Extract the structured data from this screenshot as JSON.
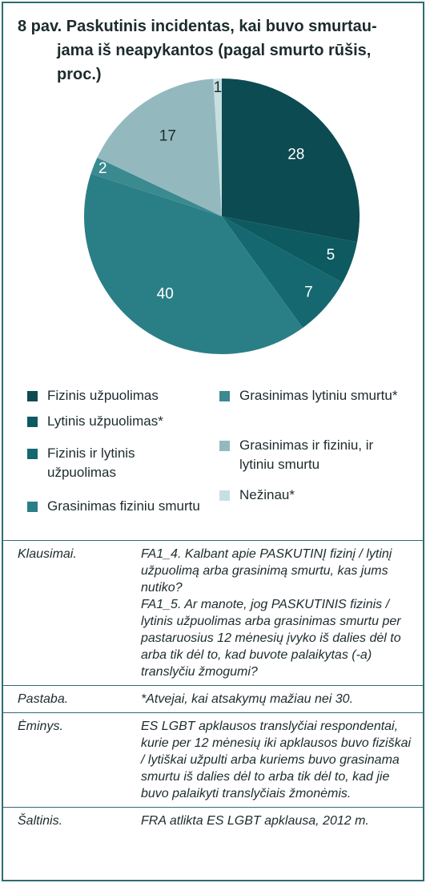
{
  "chart_data": {
    "type": "pie",
    "title": [
      "8 pav. Paskutinis incidentas, kai buvo smurtau-",
      "jama iš neapykantos (pagal smurto rūšis,",
      "proc.)"
    ],
    "categories": [
      "Fizinis užpuolimas",
      "Lytinis užpuolimas*",
      "Fizinis ir lytinis užpuolimas",
      "Grasinimas fiziniu smurtu",
      "Grasinimas lytiniu smurtu*",
      "Grasinimas ir fiziniu, ir lytiniu smurtu",
      "Nežinau*"
    ],
    "values": [
      28,
      5,
      7,
      40,
      2,
      17,
      1
    ],
    "colors": [
      "#0c4b51",
      "#0e5a61",
      "#15686f",
      "#2a7f86",
      "#3a8a90",
      "#93b9be",
      "#c8dfe1"
    ]
  },
  "notes": [
    {
      "label": "Klausimai.",
      "text": [
        "FA1_4. Kalbant apie PASKUTINĮ fizinį / lytinį užpuolimą arba grasinimą smurtu, kas jums nutiko?",
        "FA1_5. Ar manote, jog PASKUTINIS fizinis / lytinis užpuolimas arba grasinimas smurtu per pastaruosius 12 mėnesių įvyko iš dalies dėl to arba tik dėl to, kad buvote palaikytas (-a) translyčiu žmogumi?"
      ]
    },
    {
      "label": "Pastaba.",
      "text": [
        "*Atvejai, kai atsakymų mažiau nei 30."
      ]
    },
    {
      "label": "Ėminys.",
      "text": [
        "ES LGBT apklausos translyčiai respondentai, kurie per 12 mėnesių iki apklausos buvo fiziškai / lytiškai užpulti arba kuriems buvo grasinama smurtu iš dalies dėl to arba tik dėl to, kad jie buvo palaikyti translyčiais žmonėmis."
      ]
    },
    {
      "label": "Šaltinis.",
      "text": [
        "FRA atlikta ES LGBT apklausa, 2012 m."
      ]
    }
  ]
}
